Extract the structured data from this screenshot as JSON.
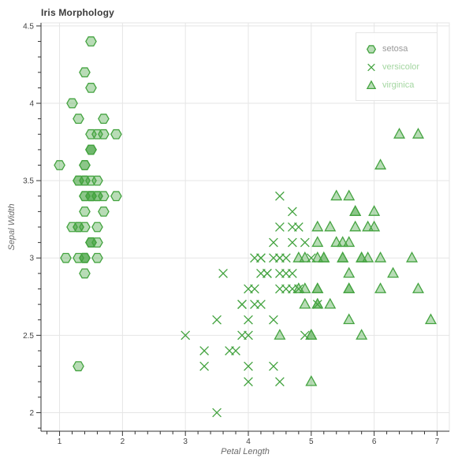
{
  "chart_data": {
    "type": "scatter",
    "title": "Iris Morphology",
    "xlabel": "Petal Length",
    "ylabel": "Sepal Width",
    "x_range": [
      0.705,
      7.195
    ],
    "y_range": [
      1.88,
      4.52
    ],
    "x_ticks": [
      1,
      2,
      3,
      4,
      5,
      6,
      7
    ],
    "x_tick_labels": [
      "1",
      "2",
      "3",
      "4",
      "5",
      "6",
      "7"
    ],
    "y_ticks": [
      2,
      2.5,
      3,
      3.5,
      4,
      4.5
    ],
    "y_tick_labels": [
      "2",
      "2.5",
      "3",
      "3.5",
      "4",
      "4.5"
    ],
    "x_minor_step": 0.2,
    "y_minor_step": 0.1,
    "grid": true,
    "legend_position": "top_right",
    "colors": {
      "marker_stroke": "#44a340",
      "marker_fill": "#44a340",
      "marker_fill_opacity": 0.38,
      "grid_line": "#e5e5e5",
      "outline": "#e5e5e5",
      "axis_line": "#333333",
      "tick_label": "#444444",
      "axis_label": "#6b6b6b",
      "title": "#3b3b3b",
      "legend_border": "#e5e5e5",
      "legend_bg": "#fefefe"
    },
    "series": [
      {
        "name": "setosa",
        "marker": "hex",
        "legend_label_color": "#999999",
        "points": [
          [
            1.4,
            3.5
          ],
          [
            1.4,
            3.0
          ],
          [
            1.3,
            3.2
          ],
          [
            1.5,
            3.1
          ],
          [
            1.4,
            3.6
          ],
          [
            1.7,
            3.9
          ],
          [
            1.4,
            3.4
          ],
          [
            1.5,
            3.4
          ],
          [
            1.4,
            2.9
          ],
          [
            1.5,
            3.1
          ],
          [
            1.5,
            3.7
          ],
          [
            1.6,
            3.4
          ],
          [
            1.4,
            3.0
          ],
          [
            1.1,
            3.0
          ],
          [
            1.2,
            4.0
          ],
          [
            1.5,
            4.4
          ],
          [
            1.3,
            3.9
          ],
          [
            1.4,
            3.5
          ],
          [
            1.7,
            3.8
          ],
          [
            1.5,
            3.8
          ],
          [
            1.7,
            3.4
          ],
          [
            1.5,
            3.7
          ],
          [
            1.0,
            3.6
          ],
          [
            1.7,
            3.3
          ],
          [
            1.9,
            3.4
          ],
          [
            1.6,
            3.0
          ],
          [
            1.6,
            3.4
          ],
          [
            1.5,
            3.5
          ],
          [
            1.4,
            3.4
          ],
          [
            1.6,
            3.2
          ],
          [
            1.6,
            3.1
          ],
          [
            1.5,
            3.4
          ],
          [
            1.5,
            4.1
          ],
          [
            1.4,
            4.2
          ],
          [
            1.5,
            3.1
          ],
          [
            1.2,
            3.2
          ],
          [
            1.3,
            3.5
          ],
          [
            1.4,
            3.6
          ],
          [
            1.3,
            3.0
          ],
          [
            1.5,
            3.4
          ],
          [
            1.3,
            3.5
          ],
          [
            1.3,
            2.3
          ],
          [
            1.3,
            3.2
          ],
          [
            1.6,
            3.5
          ],
          [
            1.9,
            3.8
          ],
          [
            1.4,
            3.0
          ],
          [
            1.6,
            3.8
          ],
          [
            1.4,
            3.2
          ],
          [
            1.5,
            3.7
          ],
          [
            1.4,
            3.3
          ]
        ]
      },
      {
        "name": "versicolor",
        "marker": "x",
        "legend_label_color": "#a3d6a0",
        "points": [
          [
            4.7,
            3.2
          ],
          [
            4.5,
            3.2
          ],
          [
            4.9,
            3.1
          ],
          [
            4.0,
            2.3
          ],
          [
            4.6,
            2.8
          ],
          [
            4.5,
            2.8
          ],
          [
            4.7,
            3.3
          ],
          [
            3.3,
            2.4
          ],
          [
            4.6,
            2.9
          ],
          [
            3.9,
            2.7
          ],
          [
            3.5,
            2.0
          ],
          [
            4.2,
            3.0
          ],
          [
            4.0,
            2.2
          ],
          [
            4.7,
            2.9
          ],
          [
            3.6,
            2.9
          ],
          [
            4.4,
            3.1
          ],
          [
            4.5,
            3.0
          ],
          [
            4.1,
            2.7
          ],
          [
            4.5,
            2.2
          ],
          [
            3.9,
            2.5
          ],
          [
            4.8,
            3.2
          ],
          [
            4.0,
            2.8
          ],
          [
            4.9,
            2.5
          ],
          [
            4.7,
            2.8
          ],
          [
            4.3,
            2.9
          ],
          [
            4.4,
            3.0
          ],
          [
            4.8,
            2.8
          ],
          [
            5.0,
            3.0
          ],
          [
            4.5,
            2.9
          ],
          [
            3.5,
            2.6
          ],
          [
            3.8,
            2.4
          ],
          [
            3.7,
            2.4
          ],
          [
            3.9,
            2.7
          ],
          [
            5.1,
            2.7
          ],
          [
            4.5,
            3.0
          ],
          [
            4.5,
            3.4
          ],
          [
            4.7,
            3.1
          ],
          [
            4.4,
            2.3
          ],
          [
            4.1,
            3.0
          ],
          [
            4.0,
            2.5
          ],
          [
            4.4,
            2.6
          ],
          [
            4.6,
            3.0
          ],
          [
            4.0,
            2.6
          ],
          [
            3.3,
            2.3
          ],
          [
            4.2,
            2.7
          ],
          [
            4.2,
            3.0
          ],
          [
            4.2,
            2.9
          ],
          [
            4.3,
            2.9
          ],
          [
            3.0,
            2.5
          ],
          [
            4.1,
            2.8
          ]
        ]
      },
      {
        "name": "virginica",
        "marker": "triangle",
        "legend_label_color": "#a3d6a0",
        "points": [
          [
            6.0,
            3.3
          ],
          [
            5.1,
            2.7
          ],
          [
            5.9,
            3.0
          ],
          [
            5.6,
            2.9
          ],
          [
            5.8,
            3.0
          ],
          [
            6.6,
            3.0
          ],
          [
            4.5,
            2.5
          ],
          [
            6.3,
            2.9
          ],
          [
            5.8,
            2.5
          ],
          [
            6.1,
            3.6
          ],
          [
            5.1,
            3.2
          ],
          [
            5.3,
            2.7
          ],
          [
            5.5,
            3.0
          ],
          [
            5.0,
            2.5
          ],
          [
            5.1,
            2.8
          ],
          [
            5.3,
            3.2
          ],
          [
            5.5,
            3.0
          ],
          [
            6.7,
            3.8
          ],
          [
            6.9,
            2.6
          ],
          [
            5.0,
            2.2
          ],
          [
            5.7,
            3.2
          ],
          [
            4.9,
            2.8
          ],
          [
            6.7,
            2.8
          ],
          [
            4.9,
            2.7
          ],
          [
            5.7,
            3.3
          ],
          [
            6.0,
            3.2
          ],
          [
            4.8,
            2.8
          ],
          [
            4.9,
            3.0
          ],
          [
            5.6,
            2.8
          ],
          [
            5.8,
            3.0
          ],
          [
            6.1,
            2.8
          ],
          [
            6.4,
            3.8
          ],
          [
            5.6,
            2.8
          ],
          [
            5.1,
            2.8
          ],
          [
            5.6,
            2.6
          ],
          [
            6.1,
            3.0
          ],
          [
            5.6,
            3.4
          ],
          [
            5.5,
            3.1
          ],
          [
            4.8,
            3.0
          ],
          [
            5.4,
            3.1
          ],
          [
            5.6,
            3.1
          ],
          [
            5.1,
            3.1
          ],
          [
            5.1,
            2.7
          ],
          [
            5.9,
            3.2
          ],
          [
            5.7,
            3.3
          ],
          [
            5.2,
            3.0
          ],
          [
            5.0,
            2.5
          ],
          [
            5.2,
            3.0
          ],
          [
            5.4,
            3.4
          ],
          [
            5.1,
            3.0
          ]
        ]
      }
    ]
  }
}
